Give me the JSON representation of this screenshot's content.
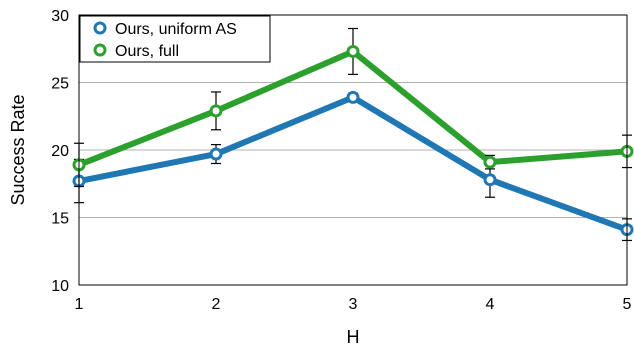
{
  "chart_data": {
    "type": "line",
    "title": "",
    "xlabel": "H",
    "ylabel": "Success Rate",
    "x": [
      1,
      2,
      3,
      4,
      5
    ],
    "xticks": [
      "1",
      "2",
      "3",
      "4",
      "5"
    ],
    "yticks": [
      "10",
      "15",
      "20",
      "25",
      "30"
    ],
    "ylim": [
      10,
      30
    ],
    "xlim": [
      1,
      5
    ],
    "grid": "horizontal",
    "legend_position": "top-left",
    "series": [
      {
        "name": "Ours, uniform AS",
        "color": "#1f77b4",
        "values": [
          17.7,
          19.7,
          23.9,
          17.8,
          14.1
        ],
        "error": [
          1.6,
          0.7,
          0.3,
          1.3,
          0.8
        ]
      },
      {
        "name": "Ours, full",
        "color": "#2ca02c",
        "values": [
          18.9,
          22.9,
          27.3,
          19.1,
          19.9
        ],
        "error": [
          1.6,
          1.4,
          1.7,
          0.5,
          1.2
        ]
      }
    ]
  }
}
